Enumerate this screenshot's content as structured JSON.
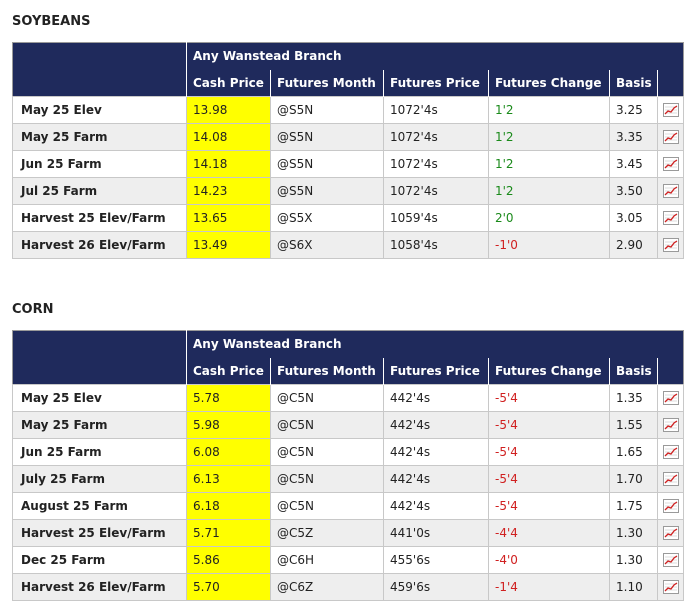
{
  "soybeans": {
    "title": "SOYBEANS",
    "location": "Any Wanstead Branch",
    "columns": [
      "Cash Price",
      "Futures Month",
      "Futures Price",
      "Futures Change",
      "Basis"
    ],
    "rows": [
      {
        "name": "May 25 Elev",
        "cash": "13.98",
        "month": "@S5N",
        "price": "1072'4s",
        "change": "1'2",
        "basis": "3.25"
      },
      {
        "name": "May 25 Farm",
        "cash": "14.08",
        "month": "@S5N",
        "price": "1072'4s",
        "change": "1'2",
        "basis": "3.35"
      },
      {
        "name": "Jun 25 Farm",
        "cash": "14.18",
        "month": "@S5N",
        "price": "1072'4s",
        "change": "1'2",
        "basis": "3.45"
      },
      {
        "name": "Jul 25 Farm",
        "cash": "14.23",
        "month": "@S5N",
        "price": "1072'4s",
        "change": "1'2",
        "basis": "3.50"
      },
      {
        "name": "Harvest 25 Elev/Farm",
        "cash": "13.65",
        "month": "@S5X",
        "price": "1059'4s",
        "change": "2'0",
        "basis": "3.05"
      },
      {
        "name": "Harvest 26 Elev/Farm",
        "cash": "13.49",
        "month": "@S6X",
        "price": "1058'4s",
        "change": "-1'0",
        "basis": "2.90"
      }
    ]
  },
  "corn": {
    "title": "CORN",
    "location": "Any Wanstead Branch",
    "columns": [
      "Cash Price",
      "Futures Month",
      "Futures Price",
      "Futures Change",
      "Basis"
    ],
    "rows": [
      {
        "name": "May 25 Elev",
        "cash": "5.78",
        "month": "@C5N",
        "price": "442'4s",
        "change": "-5'4",
        "basis": "1.35"
      },
      {
        "name": "May 25 Farm",
        "cash": "5.98",
        "month": "@C5N",
        "price": "442'4s",
        "change": "-5'4",
        "basis": "1.55"
      },
      {
        "name": "Jun 25 Farm",
        "cash": "6.08",
        "month": "@C5N",
        "price": "442'4s",
        "change": "-5'4",
        "basis": "1.65"
      },
      {
        "name": "July 25 Farm",
        "cash": "6.13",
        "month": "@C5N",
        "price": "442'4s",
        "change": "-5'4",
        "basis": "1.70"
      },
      {
        "name": "August 25 Farm",
        "cash": "6.18",
        "month": "@C5N",
        "price": "442'4s",
        "change": "-5'4",
        "basis": "1.75"
      },
      {
        "name": "Harvest 25 Elev/Farm",
        "cash": "5.71",
        "month": "@C5Z",
        "price": "441'0s",
        "change": "-4'4",
        "basis": "1.30"
      },
      {
        "name": "Dec 25 Farm",
        "cash": "5.86",
        "month": "@C6H",
        "price": "455'6s",
        "change": "-4'0",
        "basis": "1.30"
      },
      {
        "name": "Harvest 26 Elev/Farm",
        "cash": "5.70",
        "month": "@C6Z",
        "price": "459'6s",
        "change": "-1'4",
        "basis": "1.10"
      }
    ]
  },
  "icons": {
    "chart": "chart-icon"
  },
  "colors": {
    "header": "#1f2a5c",
    "cash_highlight": "#ffff00",
    "positive": "#1a8a1a",
    "negative": "#d02020"
  }
}
